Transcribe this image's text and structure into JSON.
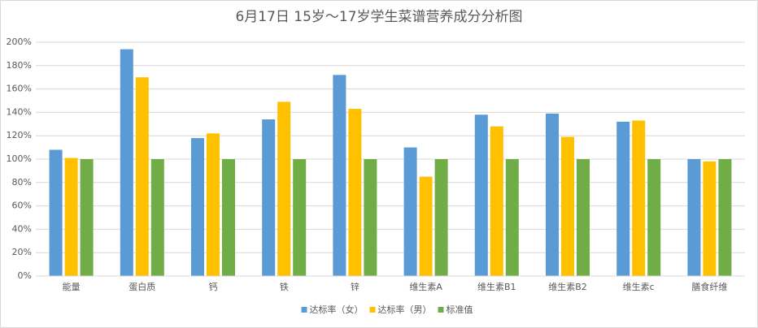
{
  "chart_data": {
    "type": "bar",
    "title": "6月17日 15岁～17岁学生菜谱营养成分分析图",
    "categories": [
      "能量",
      "蛋白质",
      "钙",
      "铁",
      "锌",
      "维生素A",
      "维生素B1",
      "维生素B2",
      "维生素c",
      "膳食纤维"
    ],
    "series": [
      {
        "name": "达标率（女）",
        "color": "#5b9bd5",
        "values": [
          108,
          194,
          118,
          134,
          172,
          110,
          138,
          139,
          132,
          100
        ]
      },
      {
        "name": "达标率（男）",
        "color": "#ffc000",
        "values": [
          101,
          170,
          122,
          149,
          143,
          85,
          128,
          119,
          133,
          98
        ]
      },
      {
        "name": "标准值",
        "color": "#70ad47",
        "values": [
          100,
          100,
          100,
          100,
          100,
          100,
          100,
          100,
          100,
          100
        ]
      }
    ],
    "ylim": [
      0,
      200
    ],
    "yticks": [
      {
        "value": 0,
        "label": "0%"
      },
      {
        "value": 20,
        "label": "20%"
      },
      {
        "value": 40,
        "label": "40%"
      },
      {
        "value": 60,
        "label": "60%"
      },
      {
        "value": 80,
        "label": "80%"
      },
      {
        "value": 100,
        "label": "100%"
      },
      {
        "value": 120,
        "label": "120%"
      },
      {
        "value": 140,
        "label": "140%"
      },
      {
        "value": 160,
        "label": "160%"
      },
      {
        "value": 180,
        "label": "180%"
      },
      {
        "value": 200,
        "label": "200%"
      }
    ],
    "grid": true,
    "legend": "bottom"
  }
}
